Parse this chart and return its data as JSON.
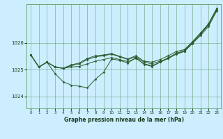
{
  "background_color": "#cceeff",
  "grid_color": "#4a8a4a",
  "line_color": "#2a5a2a",
  "xlabel": "Graphe pression niveau de la mer (hPa)",
  "xlim": [
    -0.5,
    23.5
  ],
  "ylim": [
    1023.55,
    1027.45
  ],
  "yticks": [
    1024,
    1025,
    1026
  ],
  "xticks": [
    0,
    1,
    2,
    3,
    4,
    5,
    6,
    7,
    8,
    9,
    10,
    11,
    12,
    13,
    14,
    15,
    16,
    17,
    18,
    19,
    20,
    21,
    22,
    23
  ],
  "series": [
    [
      1025.55,
      1025.1,
      1025.28,
      1024.85,
      1024.55,
      1024.42,
      1024.38,
      1024.32,
      1024.65,
      1024.9,
      1025.4,
      1025.35,
      1025.25,
      1025.45,
      1025.2,
      1025.12,
      1025.28,
      1025.45,
      1025.6,
      1025.72,
      1026.0,
      1026.35,
      1026.72,
      1027.25
    ],
    [
      1025.55,
      1025.1,
      1025.28,
      1025.1,
      1025.05,
      1025.1,
      1025.12,
      1025.22,
      1025.32,
      1025.38,
      1025.45,
      1025.38,
      1025.3,
      1025.42,
      1025.22,
      1025.15,
      1025.28,
      1025.42,
      1025.58,
      1025.68,
      1025.98,
      1026.28,
      1026.62,
      1027.2
    ],
    [
      1025.55,
      1025.1,
      1025.28,
      1025.1,
      1025.05,
      1025.15,
      1025.22,
      1025.38,
      1025.48,
      1025.52,
      1025.58,
      1025.48,
      1025.38,
      1025.48,
      1025.28,
      1025.22,
      1025.32,
      1025.42,
      1025.62,
      1025.68,
      1026.02,
      1026.32,
      1026.68,
      1027.25
    ],
    [
      1025.55,
      1025.1,
      1025.28,
      1025.1,
      1025.05,
      1025.18,
      1025.25,
      1025.42,
      1025.52,
      1025.55,
      1025.6,
      1025.5,
      1025.4,
      1025.52,
      1025.32,
      1025.28,
      1025.38,
      1025.52,
      1025.68,
      1025.75,
      1026.05,
      1026.38,
      1026.72,
      1027.3
    ]
  ]
}
